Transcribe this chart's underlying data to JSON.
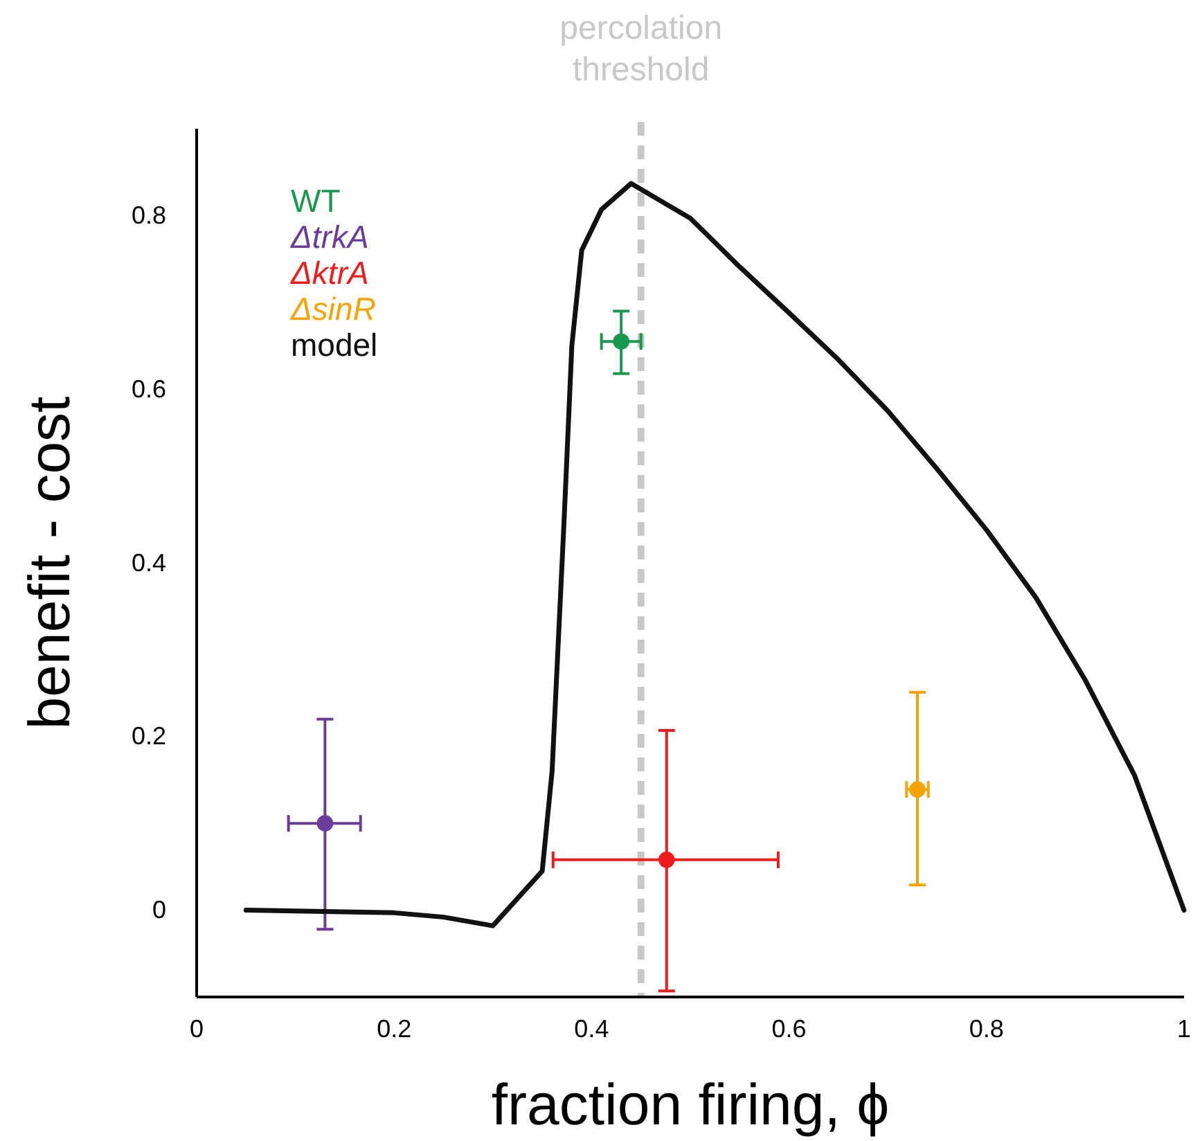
{
  "chart_data": {
    "type": "scatter",
    "xlabel": "fraction firing, ϕ",
    "ylabel": "benefit - cost",
    "xlim": [
      0,
      1
    ],
    "ylim": [
      -0.1,
      0.9
    ],
    "xticks": [
      0,
      0.2,
      0.4,
      0.6,
      0.8,
      1
    ],
    "yticks": [
      0,
      0.2,
      0.4,
      0.6,
      0.8
    ],
    "marker": "circle",
    "legend": "top left",
    "grid": false,
    "ref_lines": [
      {
        "axis": "x",
        "value": 0.45,
        "label": "percolation threshold",
        "color": "#c8c8c8",
        "line_style": "dashed"
      }
    ],
    "series": [
      {
        "name": "WT",
        "color": "#1a9850",
        "x": [
          0.43
        ],
        "values": [
          0.655
        ],
        "errors": [
          [
            0.618,
            0.69
          ]
        ],
        "xerrors": [
          [
            0.41,
            0.45
          ]
        ]
      },
      {
        "name": "ΔtrkA",
        "color": "#6a3d9a",
        "x": [
          0.13
        ],
        "values": [
          0.1
        ],
        "errors": [
          [
            -0.022,
            0.22
          ]
        ],
        "xerrors": [
          [
            0.093,
            0.166
          ]
        ]
      },
      {
        "name": "ΔktrA",
        "color": "#ee1c1c",
        "x": [
          0.476
        ],
        "values": [
          0.058
        ],
        "errors": [
          [
            -0.093,
            0.207
          ]
        ],
        "xerrors": [
          [
            0.361,
            0.589
          ]
        ]
      },
      {
        "name": "ΔsinR",
        "color": "#f5a300",
        "x": [
          0.73
        ],
        "values": [
          0.139
        ],
        "errors": [
          [
            0.029,
            0.251
          ]
        ],
        "xerrors": [
          [
            0.719,
            0.741
          ]
        ]
      },
      {
        "name": "model",
        "color": "#111111",
        "type": "line",
        "line_style": "solid",
        "marker": "none",
        "x": [
          0.05,
          0.2,
          0.25,
          0.3,
          0.35,
          0.36,
          0.372,
          0.38,
          0.39,
          0.41,
          0.44,
          0.5,
          0.55,
          0.6,
          0.65,
          0.7,
          0.75,
          0.8,
          0.85,
          0.9,
          0.95,
          1
        ],
        "values": [
          0,
          -0.003,
          -0.008,
          -0.018,
          0.045,
          0.16,
          0.445,
          0.65,
          0.76,
          0.807,
          0.837,
          0.797,
          0.741,
          0.688,
          0.634,
          0.575,
          0.508,
          0.438,
          0.36,
          0.265,
          0.155,
          0
        ]
      }
    ]
  }
}
